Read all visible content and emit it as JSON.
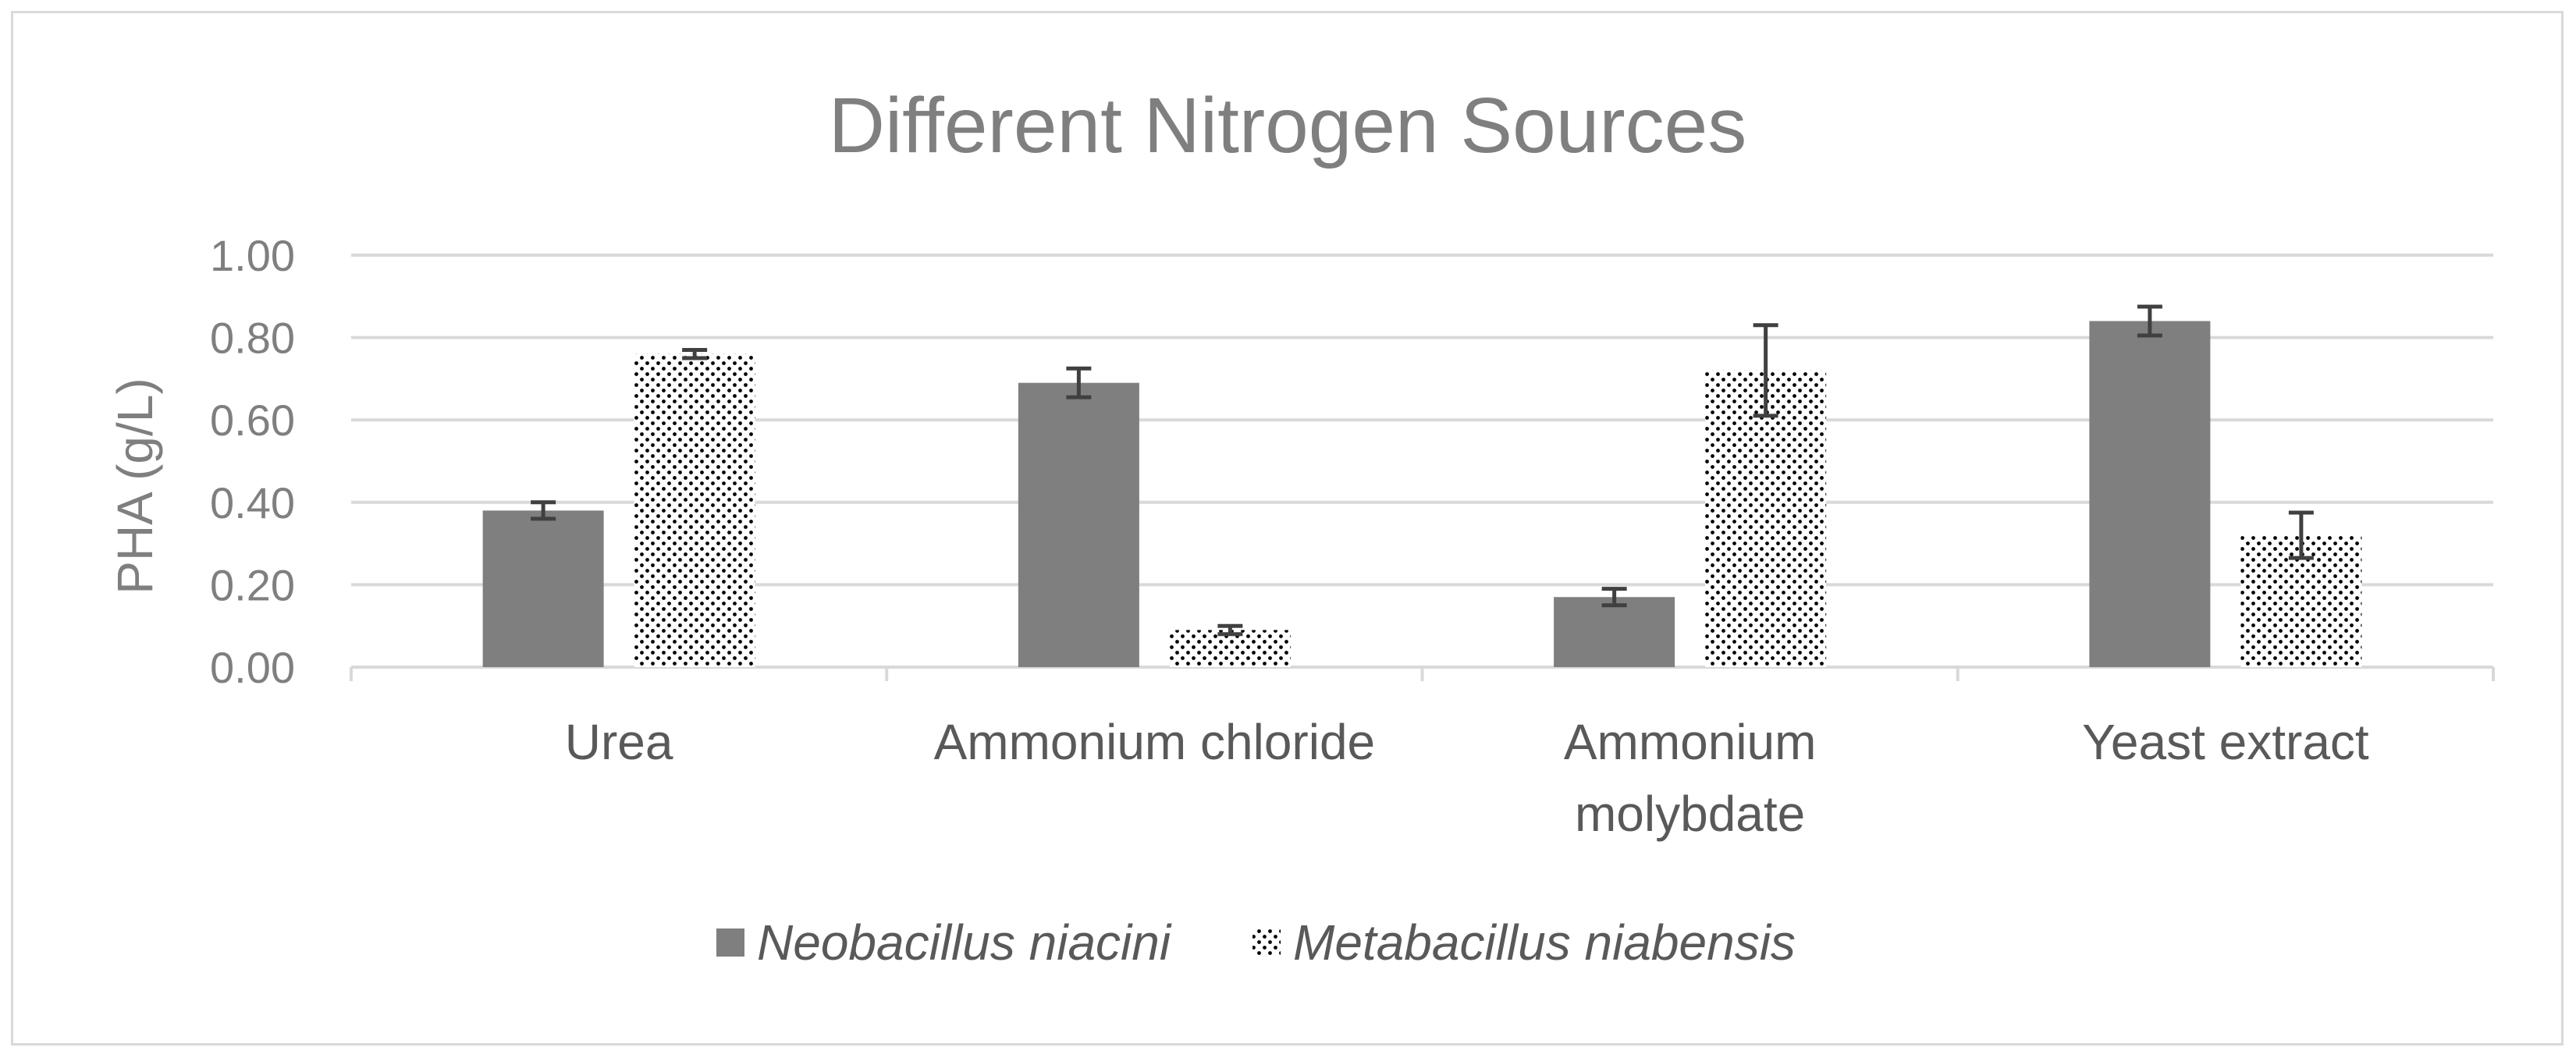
{
  "chart_data": {
    "type": "bar",
    "title": "Different Nitrogen Sources",
    "xlabel": "",
    "ylabel": "PHA (g/L)",
    "categories": [
      [
        "Urea"
      ],
      [
        "Ammonium chloride"
      ],
      [
        "Ammonium",
        "molybdate"
      ],
      [
        "Yeast extract"
      ]
    ],
    "ylim": [
      0,
      1.0
    ],
    "yticks": [
      "0.00",
      "0.20",
      "0.40",
      "0.60",
      "0.80",
      "1.00"
    ],
    "ytick_values": [
      0,
      0.2,
      0.4,
      0.6,
      0.8,
      1.0
    ],
    "grid": true,
    "legend_position": "bottom",
    "series": [
      {
        "name": "Neobacillus niacini",
        "values": [
          0.38,
          0.69,
          0.17,
          0.84
        ],
        "errors": [
          0.02,
          0.035,
          0.02,
          0.035
        ],
        "color": "#7f7f7f",
        "pattern": "solid"
      },
      {
        "name": "Metabacillus niabensis",
        "values": [
          0.76,
          0.09,
          0.72,
          0.32
        ],
        "errors": [
          0.01,
          0.01,
          0.11,
          0.055
        ],
        "color": "#000000",
        "pattern": "dots"
      }
    ]
  }
}
